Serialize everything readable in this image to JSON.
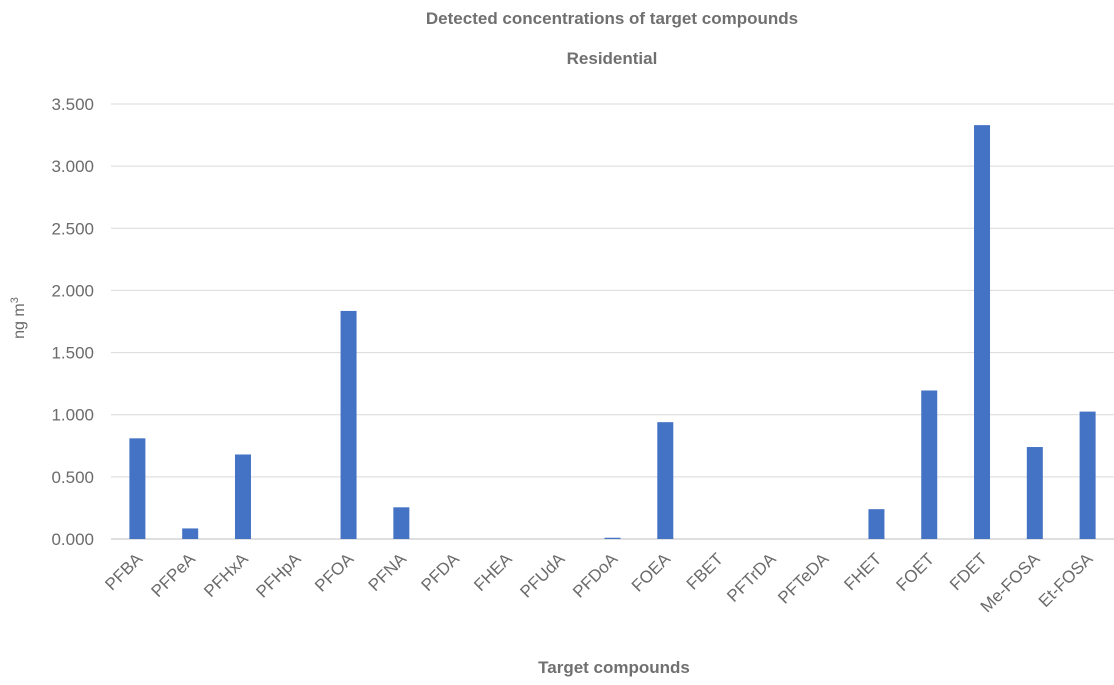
{
  "chart_data": {
    "type": "bar",
    "title": "Detected concentrations of target compounds",
    "subtitle": "Residential",
    "xlabel": "Target compounds",
    "ylabel": "ng m",
    "ylabel_superscript": "3",
    "ylim": [
      0,
      3.5
    ],
    "yticks": [
      "0.000",
      "0.500",
      "1.000",
      "1.500",
      "2.000",
      "2.500",
      "3.000",
      "3.500"
    ],
    "ytick_values": [
      0,
      0.5,
      1.0,
      1.5,
      2.0,
      2.5,
      3.0,
      3.5
    ],
    "grid": true,
    "bar_color": "#4472c4",
    "categories": [
      "PFBA",
      "PFPeA",
      "PFHxA",
      "PFHpA",
      "PFOA",
      "PFNA",
      "PFDA",
      "FHEA",
      "PFUdA",
      "PFDoA",
      "FOEA",
      "FBET",
      "PFTrDA",
      "PFTeDA",
      "FHET",
      "FOET",
      "FDET",
      "Me-FOSA",
      "Et-FOSA"
    ],
    "values": [
      0.81,
      0.085,
      0.68,
      0.0,
      1.835,
      0.255,
      0.0,
      0.0,
      0.0,
      0.01,
      0.94,
      0.0,
      0.0,
      0.0,
      0.24,
      1.195,
      3.33,
      0.74,
      1.025
    ]
  }
}
